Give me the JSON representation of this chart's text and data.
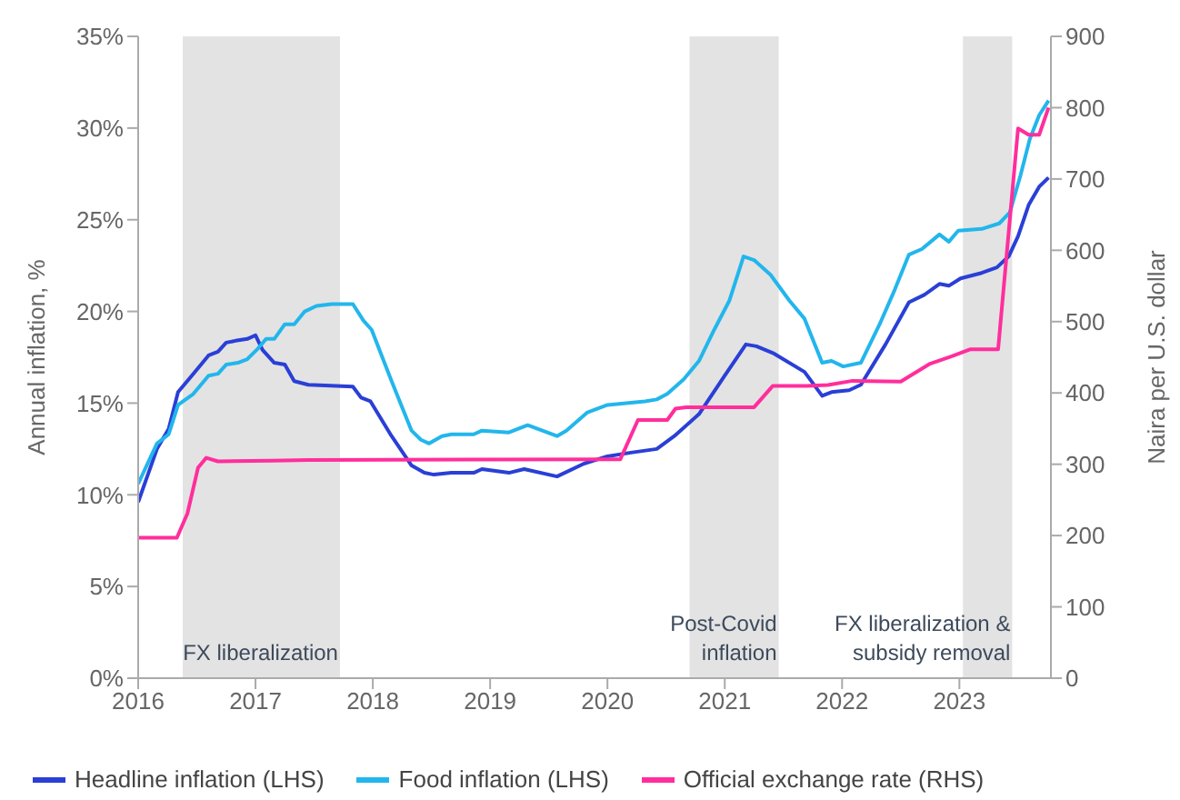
{
  "chart_data": {
    "type": "line",
    "ylabel": "Annual inflation, %",
    "y2label": "Naira per U.S. dollar",
    "xlim": [
      2016,
      2023.78
    ],
    "xticks": [
      2016,
      2017,
      2018,
      2019,
      2020,
      2021,
      2022,
      2023
    ],
    "ylim": [
      0,
      35
    ],
    "yticks": [
      {
        "value": 0,
        "label": "0%"
      },
      {
        "value": 5,
        "label": "5%"
      },
      {
        "value": 10,
        "label": "10%"
      },
      {
        "value": 15,
        "label": "15%"
      },
      {
        "value": 20,
        "label": "20%"
      },
      {
        "value": 25,
        "label": "25%"
      },
      {
        "value": 30,
        "label": "30%"
      },
      {
        "value": 35,
        "label": "35%"
      }
    ],
    "y2lim": [
      0,
      900
    ],
    "y2ticks": [
      0,
      100,
      200,
      300,
      400,
      500,
      600,
      700,
      800,
      900
    ],
    "grid": false,
    "legend": "bottom",
    "marker": "none",
    "line_style": "solid",
    "bands": [
      {
        "axis": "x",
        "from": 2016.38,
        "to": 2017.72,
        "label": "FX liberalization",
        "color": "#e3e3e3"
      },
      {
        "axis": "x",
        "from": 2020.7,
        "to": 2021.46,
        "label": "Post-Covid\ninflation",
        "color": "#e3e3e3"
      },
      {
        "axis": "x",
        "from": 2023.03,
        "to": 2023.45,
        "label": "FX liberalization &\nsubsidy removal",
        "color": "#e3e3e3"
      }
    ],
    "series": [
      {
        "name": "Headline inflation (LHS)",
        "color": "#2a3fd6",
        "x": [
          2016.0,
          2016.16,
          2016.26,
          2016.34,
          2016.47,
          2016.6,
          2016.68,
          2016.75,
          2016.83,
          2016.93,
          2017.0,
          2017.06,
          2017.16,
          2017.25,
          2017.33,
          2017.45,
          2017.83,
          2017.9,
          2017.98,
          2018.16,
          2018.33,
          2018.44,
          2018.52,
          2018.67,
          2018.86,
          2018.93,
          2019.16,
          2019.29,
          2019.57,
          2019.8,
          2020.0,
          2020.2,
          2020.42,
          2020.57,
          2020.78,
          2021.0,
          2021.18,
          2021.27,
          2021.42,
          2021.68,
          2021.83,
          2021.91,
          2022.06,
          2022.16,
          2022.37,
          2022.57,
          2022.7,
          2022.83,
          2022.91,
          2023.01,
          2023.19,
          2023.32,
          2023.42,
          2023.5,
          2023.59,
          2023.68,
          2023.76
        ],
        "values": [
          9.6,
          12.5,
          13.6,
          15.6,
          16.6,
          17.6,
          17.8,
          18.3,
          18.4,
          18.5,
          18.7,
          17.9,
          17.2,
          17.1,
          16.2,
          16.0,
          15.9,
          15.3,
          15.1,
          13.2,
          11.6,
          11.2,
          11.1,
          11.2,
          11.2,
          11.4,
          11.2,
          11.4,
          11.0,
          11.7,
          12.1,
          12.3,
          12.5,
          13.2,
          14.4,
          16.5,
          18.2,
          18.1,
          17.7,
          16.7,
          15.4,
          15.6,
          15.7,
          16.0,
          18.2,
          20.5,
          20.9,
          21.5,
          21.4,
          21.8,
          22.1,
          22.4,
          23.0,
          24.1,
          25.8,
          26.8,
          27.3
        ]
      },
      {
        "name": "Food inflation (LHS)",
        "color": "#22b6ec",
        "x": [
          2016.0,
          2016.16,
          2016.26,
          2016.34,
          2016.47,
          2016.6,
          2016.68,
          2016.75,
          2016.85,
          2016.93,
          2017.01,
          2017.09,
          2017.16,
          2017.25,
          2017.33,
          2017.42,
          2017.52,
          2017.65,
          2017.83,
          2017.92,
          2017.99,
          2018.16,
          2018.33,
          2018.41,
          2018.48,
          2018.59,
          2018.67,
          2018.86,
          2018.93,
          2019.16,
          2019.32,
          2019.57,
          2019.65,
          2019.83,
          2020.0,
          2020.16,
          2020.32,
          2020.42,
          2020.51,
          2020.65,
          2020.78,
          2020.91,
          2021.04,
          2021.16,
          2021.25,
          2021.39,
          2021.55,
          2021.68,
          2021.83,
          2021.91,
          2022.01,
          2022.16,
          2022.32,
          2022.45,
          2022.57,
          2022.68,
          2022.83,
          2022.91,
          2022.99,
          2023.19,
          2023.34,
          2023.43,
          2023.52,
          2023.6,
          2023.68,
          2023.76
        ],
        "values": [
          10.6,
          12.8,
          13.3,
          14.9,
          15.5,
          16.5,
          16.6,
          17.1,
          17.2,
          17.4,
          17.9,
          18.5,
          18.5,
          19.3,
          19.3,
          20.0,
          20.3,
          20.4,
          20.4,
          19.5,
          19.0,
          16.2,
          13.5,
          13.0,
          12.8,
          13.2,
          13.3,
          13.3,
          13.5,
          13.4,
          13.8,
          13.2,
          13.5,
          14.5,
          14.9,
          15.0,
          15.1,
          15.2,
          15.5,
          16.3,
          17.3,
          19.0,
          20.6,
          23.0,
          22.8,
          22.0,
          20.6,
          19.6,
          17.2,
          17.3,
          17.0,
          17.2,
          19.3,
          21.2,
          23.1,
          23.4,
          24.2,
          23.8,
          24.4,
          24.5,
          24.8,
          25.4,
          27.4,
          29.4,
          30.7,
          31.5
        ]
      },
      {
        "name": "Official exchange rate (RHS)",
        "color": "#ff2e9c",
        "axis": "y2",
        "x": [
          2016.0,
          2016.33,
          2016.42,
          2016.51,
          2016.58,
          2016.68,
          2017.14,
          2017.45,
          2020.09,
          2020.11,
          2020.26,
          2020.51,
          2020.58,
          2020.67,
          2021.25,
          2021.41,
          2021.7,
          2021.88,
          2022.09,
          2022.5,
          2022.75,
          2022.93,
          2023.09,
          2023.33,
          2023.5,
          2023.59,
          2023.68,
          2023.76
        ],
        "values": [
          197,
          197,
          231,
          295,
          309,
          304,
          305,
          306,
          307,
          307,
          362,
          362,
          378,
          380,
          380,
          410,
          410,
          411,
          417,
          416,
          441,
          451,
          461,
          461,
          771,
          762,
          762,
          800
        ]
      }
    ]
  }
}
